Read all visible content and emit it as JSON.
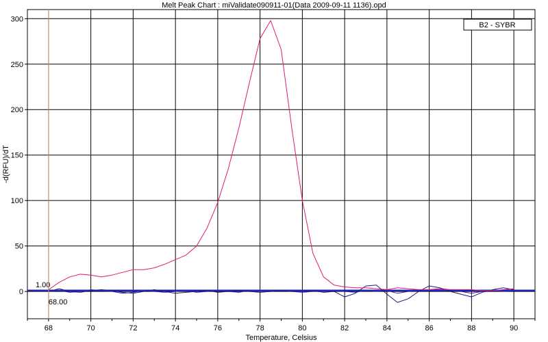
{
  "chart_data": {
    "type": "line",
    "title": "Melt Peak Chart : miValidate090911-01(Data 2009-09-11 1136).opd",
    "xlabel": "Temperature, Celsius",
    "ylabel": "-d(RFU)/dT",
    "xlim": [
      67,
      91
    ],
    "ylim": [
      -30,
      310
    ],
    "xticks": [
      68,
      70,
      72,
      74,
      76,
      78,
      80,
      82,
      84,
      86,
      88,
      90
    ],
    "yticks": [
      0,
      50,
      100,
      150,
      200,
      250,
      300
    ],
    "grid": true,
    "legend": {
      "position": "top-right",
      "entries": [
        "B2 - SYBR"
      ]
    },
    "threshold": {
      "value": 1.0,
      "label": "1.00",
      "color": "#1f1fb0"
    },
    "cursor": {
      "x": 68.0,
      "label": "68.00",
      "color": "#e8a070"
    },
    "series": [
      {
        "name": "B2 - SYBR",
        "color": "#e0187a",
        "x": [
          68.0,
          68.5,
          69.0,
          69.5,
          70.0,
          70.5,
          71.0,
          71.5,
          72.0,
          72.5,
          73.0,
          73.5,
          74.0,
          74.5,
          75.0,
          75.5,
          76.0,
          76.5,
          77.0,
          77.5,
          78.0,
          78.5,
          79.0,
          79.5,
          80.0,
          80.5,
          81.0,
          81.5,
          82.0,
          82.5,
          83.0,
          83.5,
          84.0,
          84.5,
          85.0,
          85.5,
          86.0,
          86.5,
          87.0,
          87.5,
          88.0,
          88.5,
          89.0,
          89.5,
          90.0
        ],
        "y": [
          2,
          10,
          16,
          19,
          18,
          16,
          18,
          21,
          24,
          24,
          26,
          30,
          35,
          40,
          50,
          70,
          98,
          135,
          180,
          230,
          278,
          298,
          266,
          180,
          100,
          42,
          16,
          7,
          5,
          4,
          4,
          3,
          2,
          4,
          3,
          2,
          2,
          2,
          2,
          2,
          2,
          1,
          1,
          2,
          3
        ]
      },
      {
        "name": "",
        "color": "#1a1a7a",
        "x": [
          68.0,
          68.5,
          69.0,
          69.5,
          70.0,
          70.5,
          71.0,
          71.5,
          72.0,
          72.5,
          73.0,
          73.5,
          74.0,
          74.5,
          75.0,
          75.5,
          76.0,
          76.5,
          77.0,
          77.5,
          78.0,
          78.5,
          79.0,
          79.5,
          80.0,
          80.5,
          81.0,
          81.5,
          82.0,
          82.5,
          83.0,
          83.5,
          84.0,
          84.5,
          85.0,
          85.5,
          86.0,
          86.5,
          87.0,
          87.5,
          88.0,
          88.5,
          89.0,
          89.5,
          90.0
        ],
        "y": [
          0,
          3,
          0,
          -1,
          1,
          2,
          1,
          -1,
          -2,
          0,
          2,
          0,
          -2,
          -1,
          0,
          1,
          -1,
          0,
          1,
          0,
          -1,
          0,
          1,
          0,
          0,
          1,
          -1,
          0,
          -6,
          -2,
          6,
          7,
          -3,
          -12,
          -8,
          0,
          6,
          4,
          0,
          -3,
          -6,
          -1,
          2,
          4,
          2
        ]
      },
      {
        "name": "",
        "color": "#2a2ab8",
        "x": [
          68.0,
          68.5,
          69.0,
          69.5,
          70.0,
          70.5,
          71.0,
          71.5,
          72.0,
          72.5,
          73.0,
          73.5,
          74.0,
          74.5,
          75.0,
          75.5,
          76.0,
          76.5,
          77.0,
          77.5,
          78.0,
          78.5,
          79.0,
          79.5,
          80.0,
          80.5,
          81.0,
          81.5,
          82.0,
          82.5,
          83.0,
          83.5,
          84.0,
          84.5,
          85.0,
          85.5,
          86.0,
          86.5,
          87.0,
          87.5,
          88.0,
          88.5,
          89.0,
          89.5,
          90.0
        ],
        "y": [
          0,
          1,
          -1,
          0,
          2,
          1,
          0,
          -2,
          -1,
          1,
          0,
          -1,
          0,
          1,
          -1,
          0,
          1,
          0,
          -1,
          1,
          0,
          0,
          1,
          0,
          -1,
          0,
          0,
          1,
          0,
          -1,
          1,
          0,
          1,
          -2,
          0,
          1,
          2,
          3,
          2,
          0,
          -2,
          0,
          1,
          0,
          1
        ]
      }
    ]
  }
}
